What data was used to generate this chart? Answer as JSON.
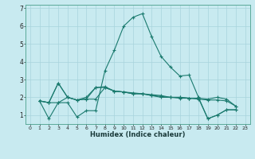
{
  "title": "",
  "xlabel": "Humidex (Indice chaleur)",
  "ylabel": "",
  "background_color": "#c8eaf0",
  "grid_color": "#a8d4dc",
  "line_color": "#1a7a6e",
  "xlim": [
    -0.5,
    23.5
  ],
  "ylim": [
    0.5,
    7.2
  ],
  "xtick_vals": [
    0,
    1,
    2,
    3,
    4,
    5,
    6,
    7,
    8,
    9,
    10,
    11,
    12,
    13,
    14,
    15,
    16,
    17,
    18,
    19,
    20,
    21,
    22,
    23
  ],
  "ytick_vals": [
    1,
    2,
    3,
    4,
    5,
    6,
    7
  ],
  "lines": [
    {
      "x": [
        1,
        2,
        3,
        4,
        5,
        6,
        7,
        8,
        9,
        10,
        11,
        12,
        13,
        14,
        15,
        16,
        17,
        18,
        19,
        20,
        21,
        22
      ],
      "y": [
        1.8,
        0.8,
        1.7,
        1.7,
        0.9,
        1.25,
        1.25,
        3.5,
        4.65,
        6.0,
        6.5,
        6.7,
        5.4,
        4.3,
        3.7,
        3.2,
        3.25,
        2.0,
        0.8,
        1.0,
        1.3,
        1.3
      ]
    },
    {
      "x": [
        1,
        2,
        3,
        4,
        5,
        6,
        7,
        8,
        9,
        10,
        11,
        12,
        13,
        14,
        15,
        16,
        17,
        18,
        19,
        20,
        21,
        22
      ],
      "y": [
        1.8,
        1.7,
        2.8,
        2.0,
        1.85,
        1.9,
        2.55,
        2.55,
        2.35,
        2.3,
        2.2,
        2.2,
        2.1,
        2.0,
        2.0,
        2.0,
        1.95,
        1.95,
        1.9,
        2.0,
        1.9,
        1.5
      ]
    },
    {
      "x": [
        1,
        2,
        3,
        4,
        5,
        6,
        7,
        8,
        9,
        10,
        11,
        12,
        13,
        14,
        15,
        16,
        17,
        18,
        19,
        20,
        21,
        22
      ],
      "y": [
        1.8,
        1.7,
        2.8,
        2.0,
        1.85,
        2.0,
        2.55,
        2.6,
        2.35,
        2.3,
        2.25,
        2.2,
        2.15,
        2.1,
        2.0,
        2.0,
        1.95,
        1.95,
        0.8,
        1.0,
        1.3,
        1.3
      ]
    },
    {
      "x": [
        1,
        2,
        3,
        4,
        5,
        6,
        7,
        8,
        9,
        10,
        11,
        12,
        13,
        14,
        15,
        16,
        17,
        18,
        19,
        20,
        21,
        22
      ],
      "y": [
        1.8,
        1.7,
        1.7,
        2.0,
        1.85,
        1.9,
        1.9,
        2.55,
        2.35,
        2.3,
        2.2,
        2.2,
        2.1,
        2.05,
        2.0,
        1.95,
        1.95,
        1.9,
        1.85,
        1.85,
        1.8,
        1.5
      ]
    }
  ]
}
